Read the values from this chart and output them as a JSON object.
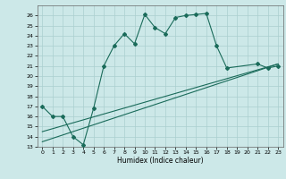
{
  "xlabel": "Humidex (Indice chaleur)",
  "ylabel": "",
  "xlim": [
    -0.5,
    23.5
  ],
  "ylim": [
    13,
    27
  ],
  "yticks": [
    13,
    14,
    15,
    16,
    17,
    18,
    19,
    20,
    21,
    22,
    23,
    24,
    25,
    26
  ],
  "xticks": [
    0,
    1,
    2,
    3,
    4,
    5,
    6,
    7,
    8,
    9,
    10,
    11,
    12,
    13,
    14,
    15,
    16,
    17,
    18,
    19,
    20,
    21,
    22,
    23
  ],
  "background_color": "#cce8e8",
  "grid_color": "#aacfcf",
  "line_color": "#1a6b5a",
  "line1_x": [
    0,
    1,
    2,
    3,
    4,
    5,
    6,
    7,
    8,
    9,
    10,
    11,
    12,
    13,
    14,
    15,
    16,
    17,
    18,
    21,
    22,
    23
  ],
  "line1_y": [
    17.0,
    16.0,
    16.0,
    14.0,
    13.2,
    16.8,
    21.0,
    23.0,
    24.2,
    23.2,
    26.1,
    24.8,
    24.2,
    25.8,
    26.0,
    26.1,
    26.2,
    23.0,
    20.8,
    21.2,
    20.8,
    21.0
  ],
  "line2_x": [
    0,
    23
  ],
  "line2_y": [
    13.5,
    21.2
  ],
  "line3_x": [
    0,
    23
  ],
  "line3_y": [
    14.5,
    21.2
  ]
}
